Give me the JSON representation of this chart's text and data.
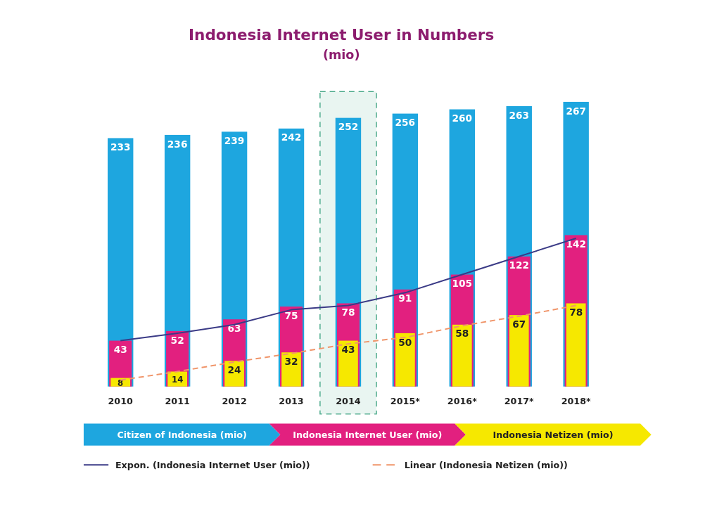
{
  "chart_data": {
    "type": "bar",
    "title": "Indonesia Internet User in Numbers",
    "subtitle": "(mio)",
    "categories": [
      "2010",
      "2011",
      "2012",
      "2013",
      "2014",
      "2015*",
      "2016*",
      "2017*",
      "2018*"
    ],
    "series": [
      {
        "name": "Citizen of Indonesia (mio)",
        "color": "#1ea6df",
        "values": [
          233,
          236,
          239,
          242,
          252,
          256,
          260,
          263,
          267
        ],
        "value_labels": [
          "233",
          "236",
          "239",
          "242",
          "252",
          "256",
          "260",
          "263",
          "267"
        ]
      },
      {
        "name": "Indonesia Internet User (mio)",
        "color": "#e2207f",
        "values": [
          43,
          52,
          63,
          75,
          78,
          91,
          105,
          122,
          142
        ],
        "value_labels": [
          "43",
          "52",
          "63",
          "75",
          "78",
          "91",
          "105",
          "122",
          "142"
        ]
      },
      {
        "name": "Indonesia Netizen (mio)",
        "color": "#f6e800",
        "values": [
          8,
          14,
          24,
          32,
          43,
          50,
          58,
          67,
          78
        ],
        "value_labels": [
          "8",
          "14",
          "24",
          "32",
          "43",
          "50",
          "58",
          "67",
          "78"
        ]
      },
      {
        "type": "line",
        "name": "Expon. (Indonesia Internet User (mio))",
        "color": "#3a3a86",
        "line_style": "solid",
        "values": [
          43,
          50,
          58,
          72,
          76,
          88,
          105,
          122,
          139
        ]
      },
      {
        "type": "line",
        "name": "Linear (Indonesia Netizen (mio))",
        "color": "#f0956a",
        "line_style": "dashed",
        "values": [
          6,
          14,
          23,
          31,
          40,
          46,
          57,
          66,
          76
        ]
      }
    ],
    "bands": [
      {
        "axis": "x",
        "from": "2014",
        "to": "2014",
        "color": "#4aa98a"
      }
    ],
    "legend": "bottom",
    "grid": false
  }
}
